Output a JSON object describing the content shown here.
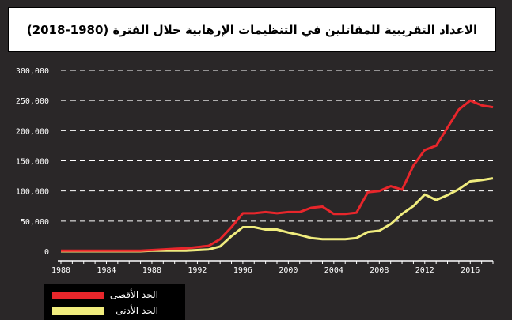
{
  "chart_data": {
    "type": "line",
    "title": "الاعداد التقريبية للمقاتلين في التنظيمات الإرهابية خلال الفترة (1980-2018)",
    "xlabel": "",
    "ylabel": "",
    "ylim": [
      0,
      300000
    ],
    "xlim": [
      1980,
      2018
    ],
    "y_ticks": [
      "0",
      "50,000",
      "100,000",
      "150,000",
      "200,000",
      "250,000",
      "300,000"
    ],
    "x_ticks": [
      "1980",
      "1984",
      "1988",
      "1992",
      "1996",
      "2000",
      "2004",
      "2008",
      "2012",
      "2016"
    ],
    "grid": "horizontal dashed",
    "legend_position": "bottom-left",
    "x": [
      1980,
      1981,
      1982,
      1983,
      1984,
      1985,
      1986,
      1987,
      1988,
      1989,
      1990,
      1991,
      1992,
      1993,
      1994,
      1995,
      1996,
      1997,
      1998,
      1999,
      2000,
      2001,
      2002,
      2003,
      2004,
      2005,
      2006,
      2007,
      2008,
      2009,
      2010,
      2011,
      2012,
      2013,
      2014,
      2015,
      2016,
      2017,
      2018
    ],
    "series": [
      {
        "name": "الحد الأقصى",
        "color": "#e8262b",
        "values": [
          1000,
          1000,
          1000,
          1000,
          1000,
          1000,
          1000,
          1000,
          2000,
          3000,
          4000,
          5000,
          7000,
          9000,
          20000,
          40000,
          63000,
          63000,
          65000,
          63000,
          65000,
          65000,
          72000,
          74000,
          62000,
          62000,
          64000,
          98000,
          100000,
          108000,
          102000,
          142000,
          168000,
          175000,
          205000,
          235000,
          250000,
          242000,
          239000
        ]
      },
      {
        "name": "الحد الأدنى",
        "color": "#f0ec7e",
        "values": [
          0,
          0,
          0,
          0,
          0,
          0,
          0,
          0,
          1000,
          1000,
          1000,
          1000,
          2000,
          3000,
          8000,
          25000,
          40000,
          40000,
          36000,
          36000,
          31000,
          27000,
          22000,
          20000,
          20000,
          20000,
          22000,
          32000,
          34000,
          45000,
          62000,
          75000,
          94000,
          85000,
          93000,
          103000,
          116000,
          118000,
          121000
        ]
      }
    ]
  }
}
